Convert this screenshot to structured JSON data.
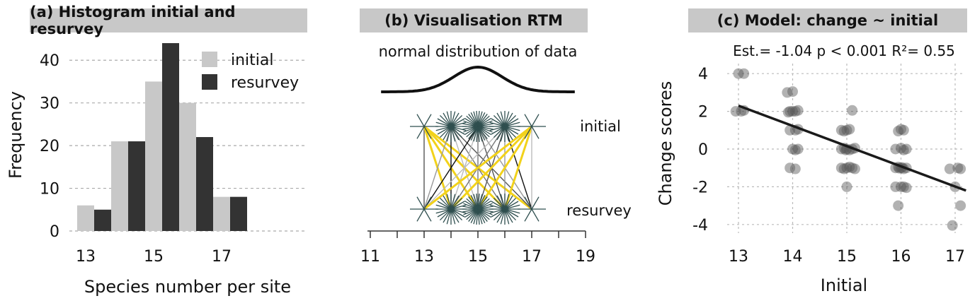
{
  "chart_data": [
    {
      "type": "bar",
      "title": "(a) Histogram initial and resurvey",
      "xlabel": "Species number per site",
      "ylabel": "Frequency",
      "ylim": [
        0,
        45
      ],
      "y_ticks": [
        0,
        10,
        20,
        30,
        40
      ],
      "x_ticks": [
        13,
        15,
        17
      ],
      "categories": [
        13,
        14,
        15,
        16,
        17
      ],
      "legend_position": "top-right",
      "grid": "horizontal dashed",
      "series": [
        {
          "name": "initial",
          "color": "#c8c8c8",
          "values": [
            6,
            21,
            35,
            30,
            8
          ]
        },
        {
          "name": "resurvey",
          "color": "#333333",
          "values": [
            5,
            21,
            44,
            22,
            8
          ]
        }
      ]
    },
    {
      "type": "diagram",
      "title": "(b) Visualisation RTM",
      "curve_label": "normal distribution of data",
      "row_labels": [
        "initial",
        "resurvey"
      ],
      "x_ticks": [
        11,
        13,
        15,
        17,
        19
      ],
      "xlim": [
        11,
        19
      ],
      "positions": [
        13,
        14,
        15,
        16,
        17
      ],
      "highlight_color": "#f2d21b",
      "marker_color": "#2f4f4f"
    },
    {
      "type": "scatter",
      "title": "(c) Model: change ~ initial",
      "xlabel": "Initial",
      "ylabel": "Change scores",
      "xlim": [
        12.8,
        17.2
      ],
      "ylim": [
        -4.5,
        4.5
      ],
      "x_ticks": [
        13,
        14,
        15,
        16,
        17
      ],
      "y_ticks": [
        -4,
        -2,
        0,
        2,
        4
      ],
      "annotation": "Est.= -1.04 p < 0.001 R²= 0.55",
      "grid": "dotted",
      "fit_line": {
        "x0": 13,
        "y0": 2.3,
        "x1": 17.2,
        "y1": -2.2
      },
      "points": [
        [
          13,
          4
        ],
        [
          13.1,
          4
        ],
        [
          12.95,
          2
        ],
        [
          13.05,
          2
        ],
        [
          13.1,
          2.05
        ],
        [
          13.9,
          3
        ],
        [
          14,
          3.05
        ],
        [
          13.95,
          2
        ],
        [
          14,
          2
        ],
        [
          14.05,
          2
        ],
        [
          14.1,
          2.05
        ],
        [
          13.92,
          1.95
        ],
        [
          13.95,
          1
        ],
        [
          14.05,
          1
        ],
        [
          14.1,
          1.05
        ],
        [
          14,
          0
        ],
        [
          14.05,
          -0.05
        ],
        [
          14.1,
          0
        ],
        [
          13.95,
          -1
        ],
        [
          14.05,
          -1.05
        ],
        [
          15.1,
          2.05
        ],
        [
          14.9,
          1
        ],
        [
          15,
          1
        ],
        [
          14.95,
          0.95
        ],
        [
          15.05,
          1.05
        ],
        [
          14.9,
          0
        ],
        [
          14.95,
          0.05
        ],
        [
          15,
          0
        ],
        [
          15.05,
          -0.05
        ],
        [
          15.1,
          0
        ],
        [
          15.15,
          0.05
        ],
        [
          14.98,
          -0.05
        ],
        [
          14.9,
          -1
        ],
        [
          14.95,
          -1.05
        ],
        [
          15,
          -1
        ],
        [
          15.05,
          -0.95
        ],
        [
          15.1,
          -1
        ],
        [
          15.15,
          -1.05
        ],
        [
          15,
          -2
        ],
        [
          16,
          1.05
        ],
        [
          16.05,
          1
        ],
        [
          15.95,
          0.95
        ],
        [
          16,
          0.05
        ],
        [
          15.9,
          0
        ],
        [
          16.05,
          -0.05
        ],
        [
          16.1,
          0
        ],
        [
          15.9,
          -1
        ],
        [
          15.95,
          -0.95
        ],
        [
          16,
          -1
        ],
        [
          16.05,
          -1.05
        ],
        [
          16.1,
          -1
        ],
        [
          16.02,
          -0.98
        ],
        [
          15.97,
          -1.02
        ],
        [
          15.9,
          -2
        ],
        [
          16,
          -2
        ],
        [
          16.1,
          -2.05
        ],
        [
          16.05,
          -2
        ],
        [
          15.95,
          -3
        ],
        [
          16.9,
          -1.05
        ],
        [
          17.05,
          -1
        ],
        [
          17.1,
          -1.05
        ],
        [
          17,
          -2
        ],
        [
          17.1,
          -3
        ],
        [
          16.95,
          -4.05
        ]
      ]
    }
  ]
}
